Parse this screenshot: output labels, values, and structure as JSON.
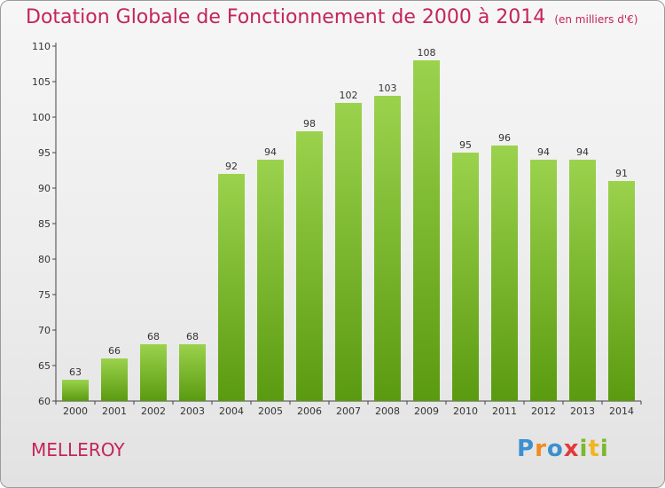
{
  "title": {
    "main": "Dotation Globale de Fonctionnement de 2000 à 2014",
    "unit": "(en milliers d'€)"
  },
  "commune": "MELLEROY",
  "logo": {
    "p": "P",
    "r": "r",
    "o": "o",
    "x": "x",
    "i": "i",
    "t": "t",
    "i2": "i"
  },
  "colors": {
    "title": "#c4245c",
    "bar_top": "#9bd24d",
    "bar_bottom": "#5a9a10"
  },
  "chart_data": {
    "type": "bar",
    "categories": [
      "2000",
      "2001",
      "2002",
      "2003",
      "2004",
      "2005",
      "2006",
      "2007",
      "2008",
      "2009",
      "2010",
      "2011",
      "2012",
      "2013",
      "2014"
    ],
    "values": [
      63,
      66,
      68,
      68,
      92,
      94,
      98,
      102,
      103,
      108,
      95,
      96,
      94,
      94,
      91
    ],
    "title": "Dotation Globale de Fonctionnement de 2000 à 2014",
    "ylim": [
      60,
      110
    ],
    "yticks": [
      60,
      65,
      70,
      75,
      80,
      85,
      90,
      95,
      100,
      105,
      110
    ],
    "data_labels": true,
    "grid": false
  }
}
